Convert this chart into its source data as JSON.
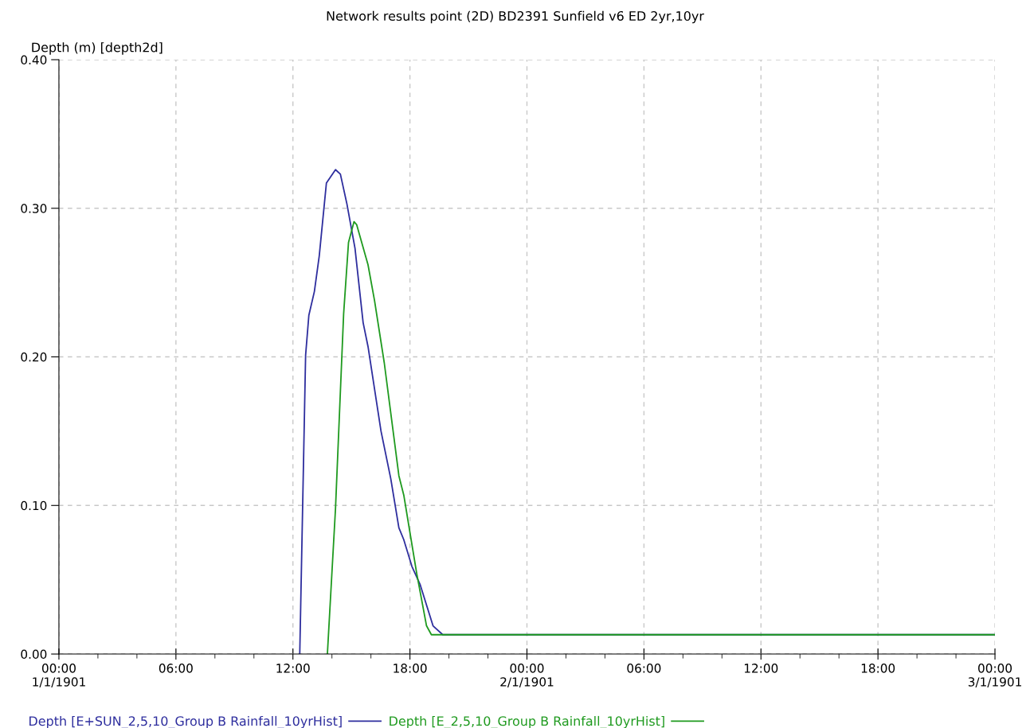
{
  "chart_data": {
    "type": "line",
    "title": "Network results point (2D) BD2391 Sunfield v6 ED 2yr,10yr",
    "ylabel": "Depth (m) [depth2d]",
    "xlim": [
      "1901-01-01T00:00",
      "1901-01-03T00:00"
    ],
    "ylim": [
      0,
      0.4
    ],
    "xticks": [
      {
        "value": "1901-01-01T00:00",
        "label": "00:00\n1/1/1901"
      },
      {
        "value": "1901-01-01T02:00",
        "label": null
      },
      {
        "value": "1901-01-01T04:00",
        "label": null
      },
      {
        "value": "1901-01-01T06:00",
        "label": "06:00"
      },
      {
        "value": "1901-01-01T08:00",
        "label": null
      },
      {
        "value": "1901-01-01T10:00",
        "label": null
      },
      {
        "value": "1901-01-01T12:00",
        "label": "12:00"
      },
      {
        "value": "1901-01-01T14:00",
        "label": null
      },
      {
        "value": "1901-01-01T16:00",
        "label": null
      },
      {
        "value": "1901-01-01T18:00",
        "label": "18:00"
      },
      {
        "value": "1901-01-01T20:00",
        "label": null
      },
      {
        "value": "1901-01-01T22:00",
        "label": null
      },
      {
        "value": "1901-01-02T00:00",
        "label": "00:00\n2/1/1901"
      },
      {
        "value": "1901-01-02T02:00",
        "label": null
      },
      {
        "value": "1901-01-02T04:00",
        "label": null
      },
      {
        "value": "1901-01-02T06:00",
        "label": "06:00"
      },
      {
        "value": "1901-01-02T08:00",
        "label": null
      },
      {
        "value": "1901-01-02T10:00",
        "label": null
      },
      {
        "value": "1901-01-02T12:00",
        "label": "12:00"
      },
      {
        "value": "1901-01-02T14:00",
        "label": null
      },
      {
        "value": "1901-01-02T16:00",
        "label": null
      },
      {
        "value": "1901-01-02T18:00",
        "label": "18:00"
      },
      {
        "value": "1901-01-02T20:00",
        "label": null
      },
      {
        "value": "1901-01-02T22:00",
        "label": null
      },
      {
        "value": "1901-01-03T00:00",
        "label": "00:00\n3/1/1901"
      }
    ],
    "yticks": [
      {
        "value": 0,
        "label": "0.00"
      },
      {
        "value": 0.1,
        "label": "0.10"
      },
      {
        "value": 0.2,
        "label": "0.20"
      },
      {
        "value": 0.3,
        "label": "0.30"
      },
      {
        "value": 0.4,
        "label": "0.40"
      }
    ],
    "grid": true,
    "legend": "bottom",
    "marker": "none",
    "line_style": "solid",
    "series": [
      {
        "name": "Depth [E+SUN_2,5,10_Group B Rainfall_10yrHist]",
        "color": "#2e2e9e",
        "x": [
          "1901-01-01T12:21",
          "1901-01-01T12:39",
          "1901-01-01T12:49",
          "1901-01-01T13:06",
          "1901-01-01T13:21",
          "1901-01-01T13:43",
          "1901-01-01T14:11",
          "1901-01-01T14:26",
          "1901-01-01T14:46",
          "1901-01-01T15:11",
          "1901-01-01T15:36",
          "1901-01-01T15:51",
          "1901-01-01T16:31",
          "1901-01-01T17:01",
          "1901-01-01T17:26",
          "1901-01-01T17:41",
          "1901-01-01T18:06",
          "1901-01-01T18:31",
          "1901-01-01T19:11",
          "1901-01-01T19:41",
          "1901-01-03T00:00"
        ],
        "values": [
          0,
          0.201,
          0.228,
          0.244,
          0.268,
          0.317,
          0.326,
          0.323,
          0.303,
          0.273,
          0.223,
          0.207,
          0.15,
          0.118,
          0.085,
          0.077,
          0.059,
          0.047,
          0.019,
          0.013,
          0.013
        ]
      },
      {
        "name": "Depth [E_2,5,10_Group B Rainfall_10yrHist]",
        "color": "#1f9a1f",
        "x": [
          "1901-01-01T13:46",
          "1901-01-01T14:11",
          "1901-01-01T14:36",
          "1901-01-01T14:51",
          "1901-01-01T15:08",
          "1901-01-01T15:16",
          "1901-01-01T15:51",
          "1901-01-01T16:11",
          "1901-01-01T16:41",
          "1901-01-01T17:26",
          "1901-01-01T17:41",
          "1901-01-01T18:21",
          "1901-01-01T18:51",
          "1901-01-01T19:06",
          "1901-01-03T00:00"
        ],
        "values": [
          0,
          0.098,
          0.229,
          0.277,
          0.291,
          0.289,
          0.262,
          0.238,
          0.196,
          0.12,
          0.107,
          0.054,
          0.019,
          0.013,
          0.013
        ]
      }
    ]
  }
}
